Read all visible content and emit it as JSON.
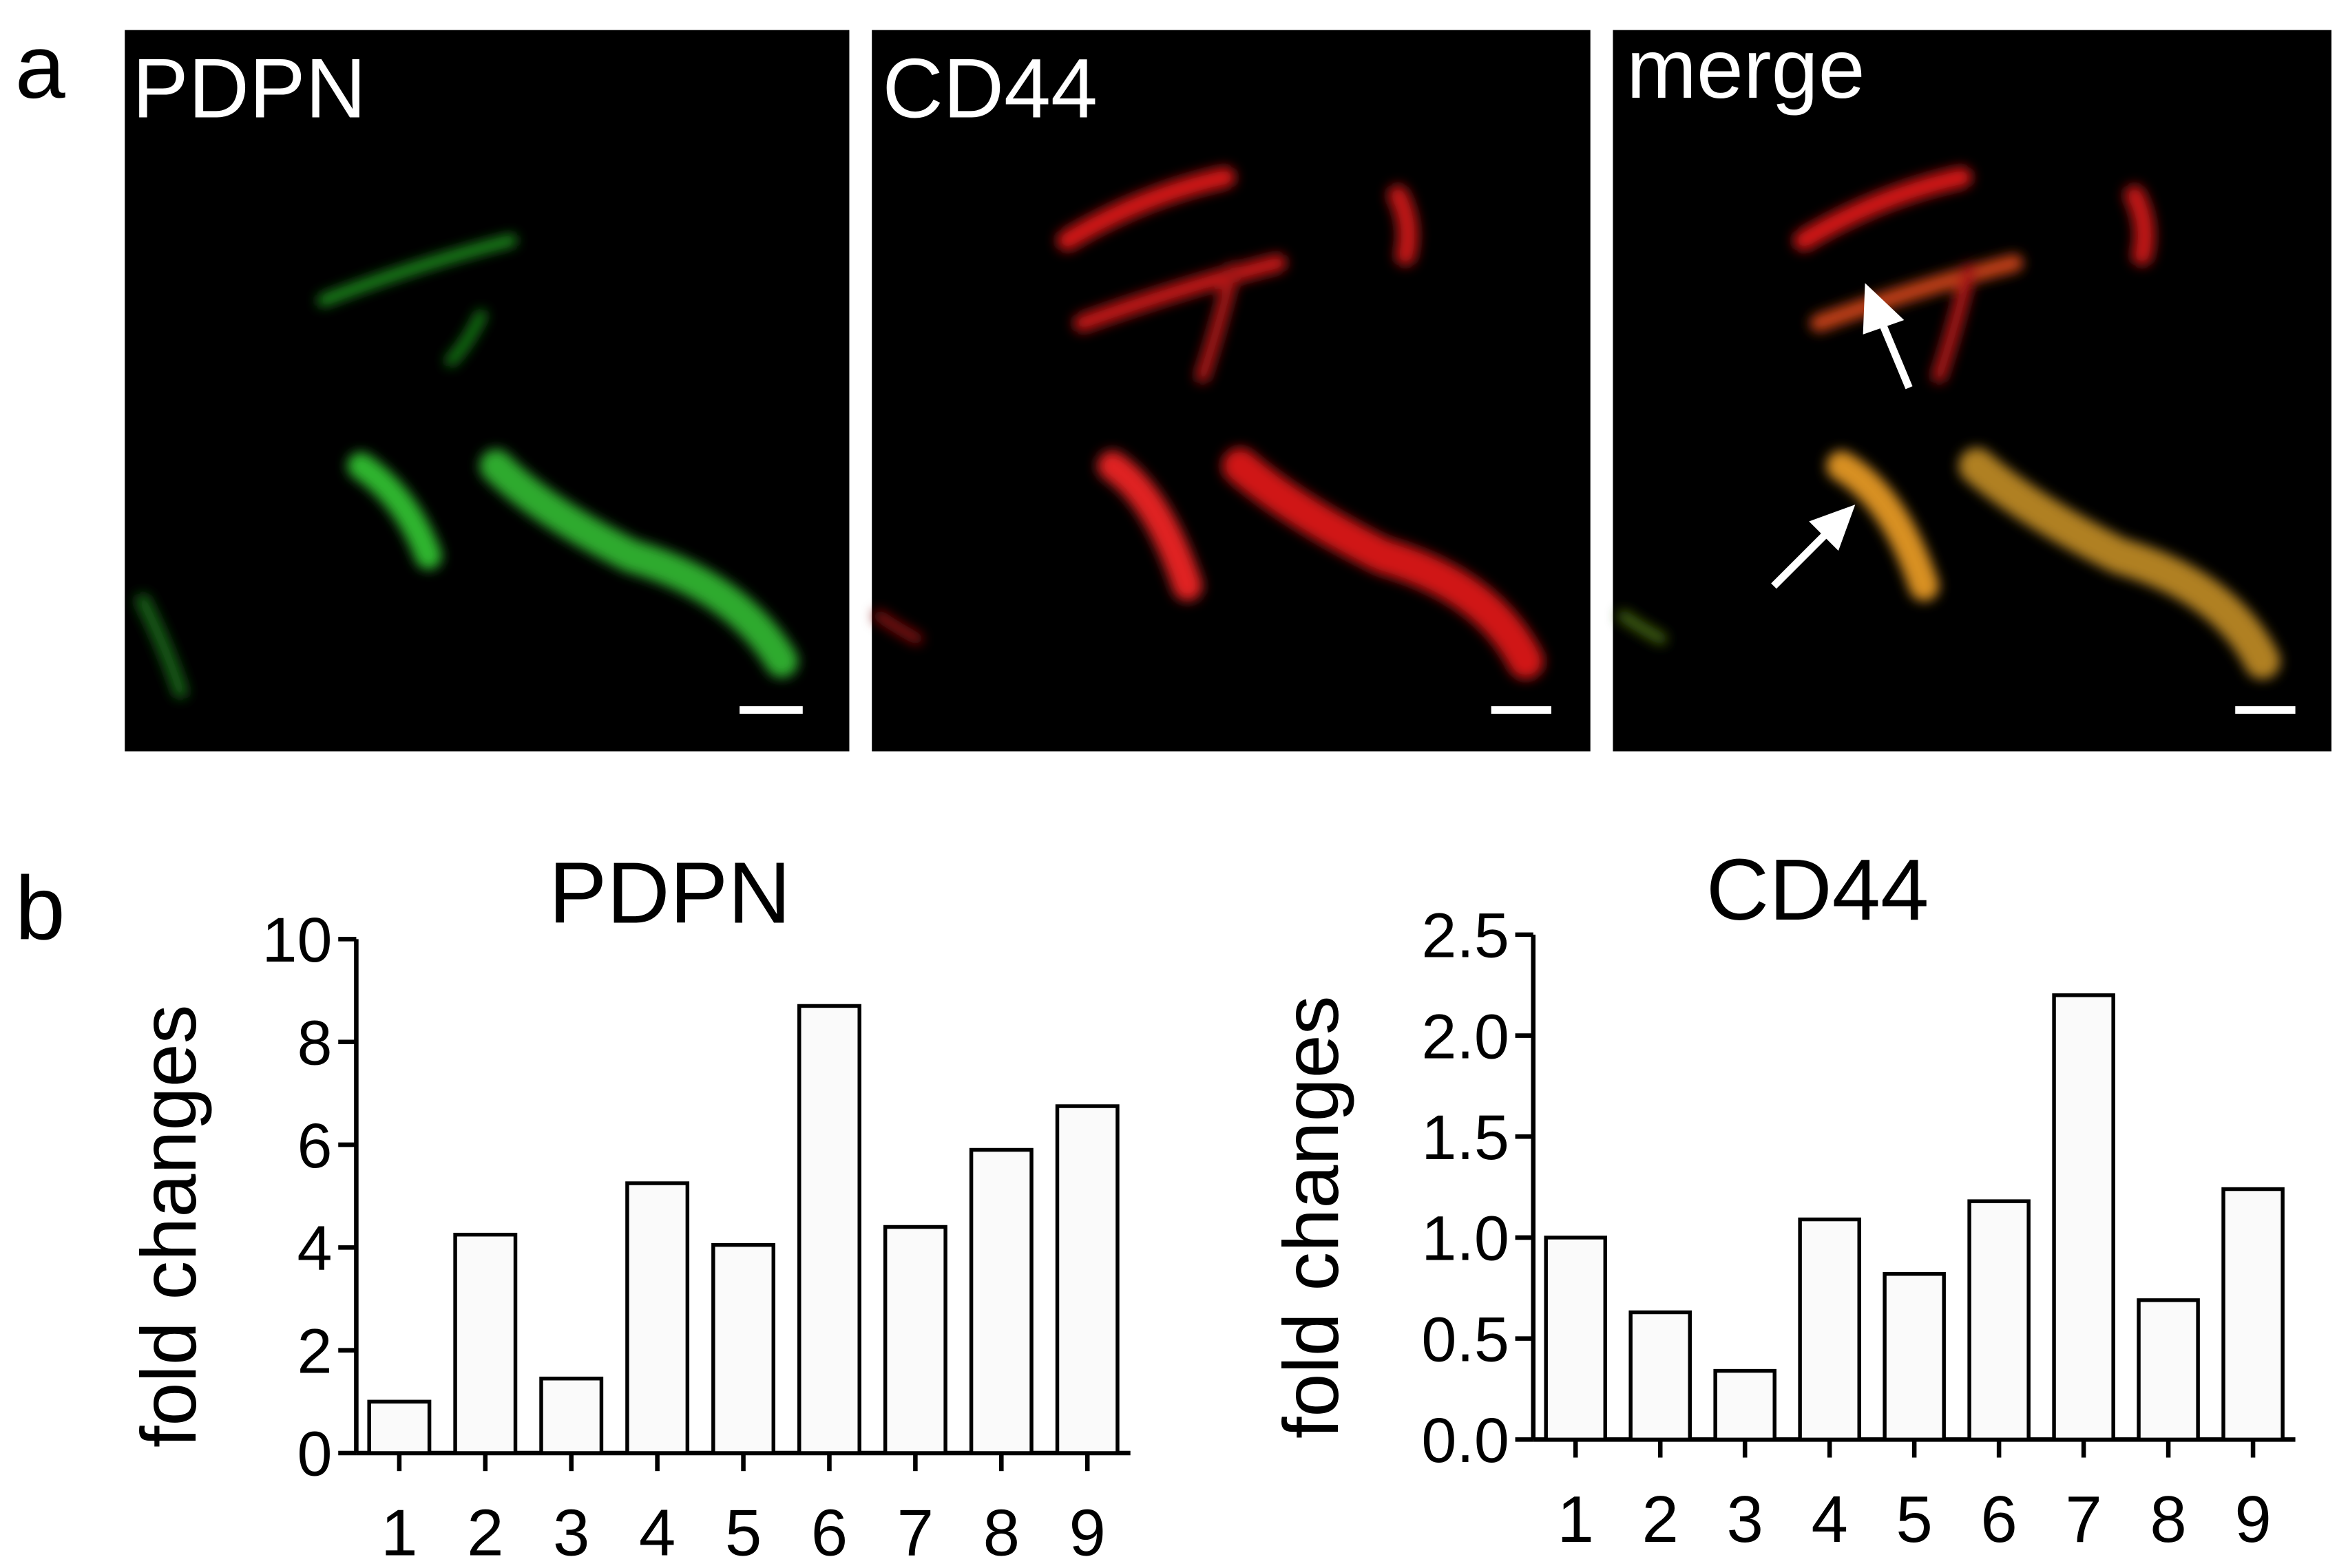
{
  "panel_labels": [
    "a",
    "b"
  ],
  "images": [
    {
      "label": "PDPN"
    },
    {
      "label": "CD44"
    },
    {
      "label": "merge"
    }
  ],
  "chart_data": [
    {
      "type": "bar",
      "title": "PDPN",
      "y_label": "fold changes",
      "categories": [
        "1",
        "2",
        "3",
        "4",
        "5",
        "6",
        "7",
        "8",
        "9"
      ],
      "values": [
        1.0,
        4.25,
        1.45,
        5.25,
        4.05,
        8.7,
        4.4,
        5.9,
        6.75
      ],
      "color": "#fafafa",
      "ylim": [
        0,
        10
      ],
      "yticks": [
        0,
        2,
        4,
        6,
        8,
        10
      ]
    },
    {
      "type": "bar",
      "title": "CD44",
      "y_label": "fold changes",
      "categories": [
        "1",
        "2",
        "3",
        "4",
        "5",
        "6",
        "7",
        "8",
        "9"
      ],
      "values": [
        1.0,
        0.63,
        0.34,
        1.09,
        0.82,
        1.18,
        2.2,
        0.69,
        1.24
      ],
      "color": "#fafafa",
      "ylim": [
        0,
        2.5
      ],
      "yticks": [
        {
          "value": 0,
          "label": "0.0"
        },
        0.5,
        {
          "value": 1,
          "label": "1.0"
        },
        1.5,
        {
          "value": 2,
          "label": "2.0"
        },
        2.5
      ]
    }
  ]
}
